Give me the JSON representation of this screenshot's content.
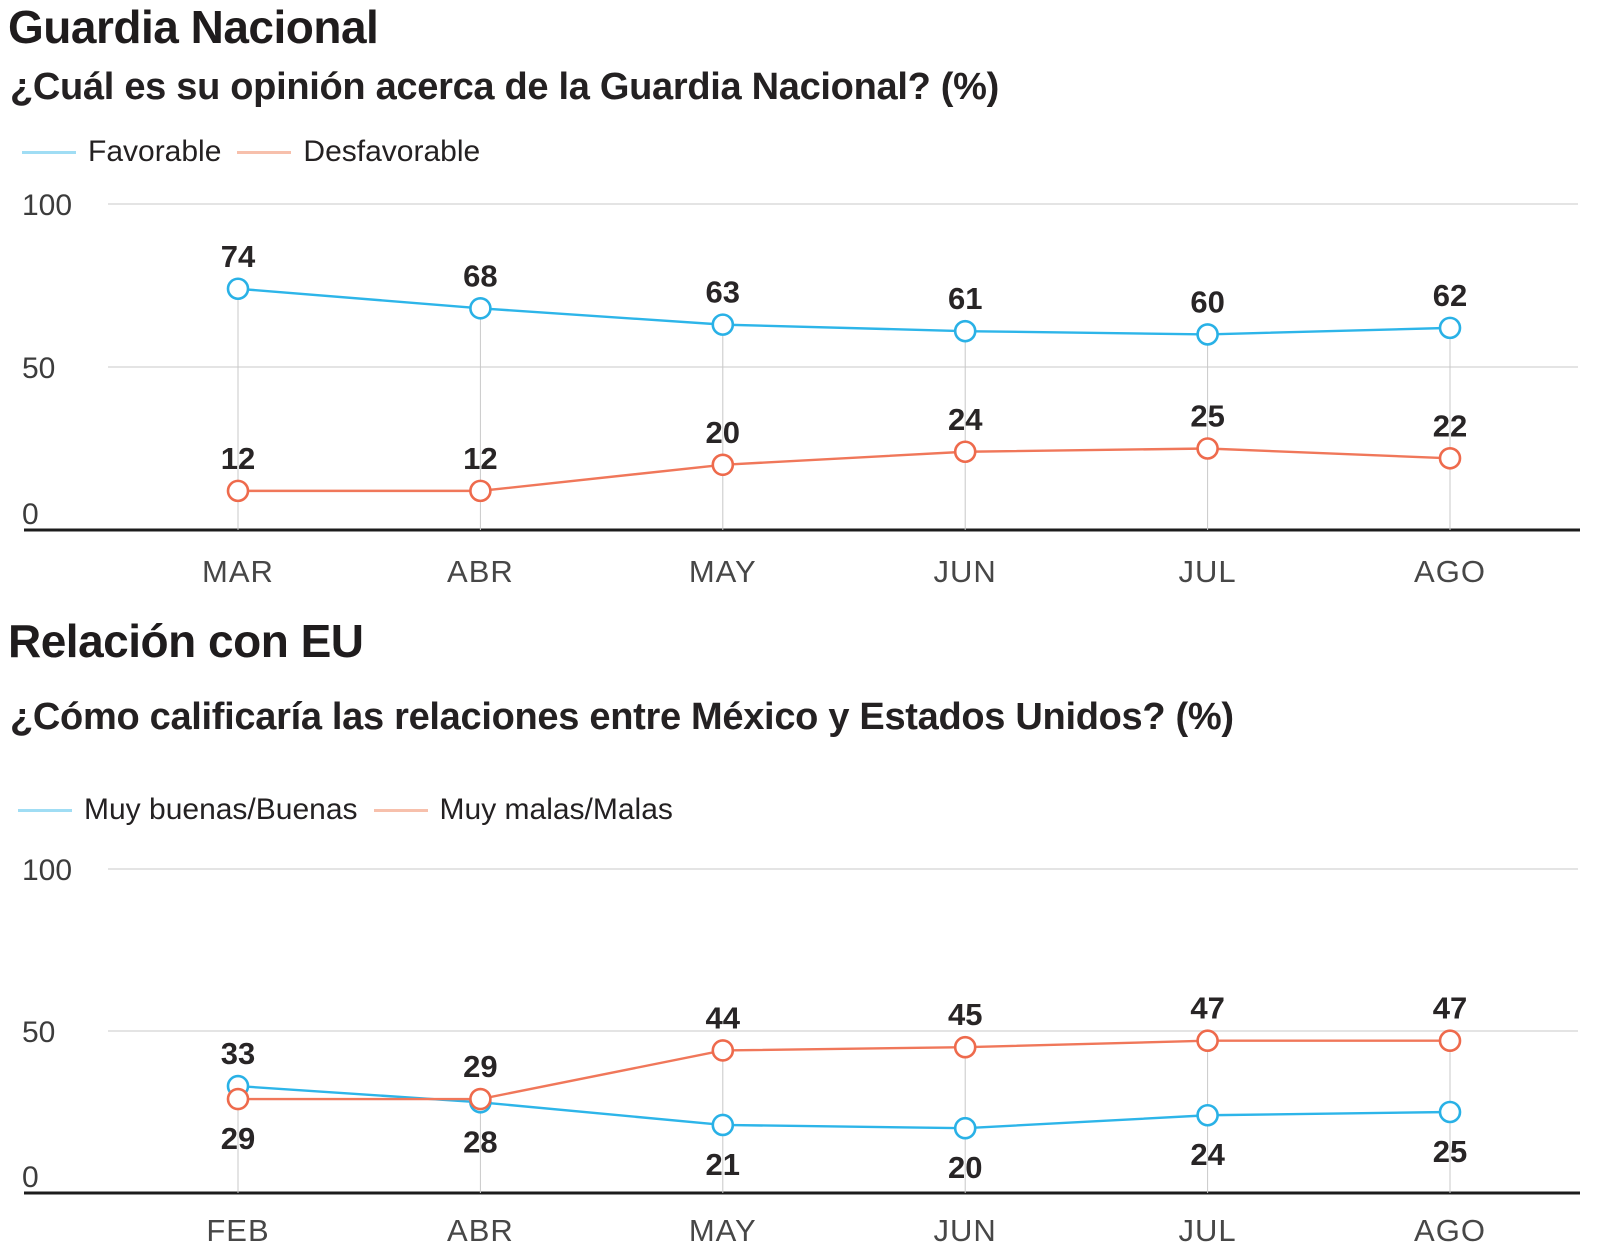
{
  "chart_data": [
    {
      "type": "line",
      "title": "Guardia Nacional",
      "subtitle": "¿Cuál es su opinión acerca de la Guardia Nacional? (%)",
      "categories": [
        "MAR",
        "ABR",
        "MAY",
        "JUN",
        "JUL",
        "AGO"
      ],
      "series": [
        {
          "name": "Favorable",
          "color": "#29b1e6",
          "line_color": "#2db5e9",
          "legend_color": "#a0ddf4",
          "values": [
            74,
            68,
            63,
            61,
            60,
            62
          ],
          "label_position": [
            "above",
            "above",
            "above",
            "above",
            "above",
            "above"
          ]
        },
        {
          "name": "Desfavorable",
          "color": "#ee6a4c",
          "line_color": "#f0775a",
          "legend_color": "#f7c0ac",
          "values": [
            12,
            12,
            20,
            24,
            25,
            22
          ],
          "label_position": [
            "above",
            "above",
            "above",
            "above",
            "above",
            "above"
          ]
        }
      ],
      "ylim": [
        0,
        100
      ],
      "yticks": [
        0,
        50,
        100
      ],
      "grid": "horizontal gridlines at 50 and 100, vertical droplines from top point to axis",
      "legend_position": "top-left",
      "xlabel": "",
      "ylabel": ""
    },
    {
      "type": "line",
      "title": "Relación con EU",
      "subtitle": "¿Cómo calificaría las relaciones entre México y Estados Unidos? (%)",
      "categories": [
        "FEB",
        "ABR",
        "MAY",
        "JUN",
        "JUL",
        "AGO"
      ],
      "series": [
        {
          "name": "Muy buenas/Buenas",
          "color": "#29b1e6",
          "line_color": "#2db5e9",
          "legend_color": "#a0ddf4",
          "values": [
            33,
            28,
            21,
            20,
            24,
            25
          ],
          "label_position": [
            "above",
            "below",
            "below",
            "below",
            "below",
            "below"
          ]
        },
        {
          "name": "Muy malas/Malas",
          "color": "#ee6a4c",
          "line_color": "#f0775a",
          "legend_color": "#f7c0ac",
          "values": [
            29,
            29,
            44,
            45,
            47,
            47
          ],
          "label_position": [
            "below",
            "above",
            "above",
            "above",
            "above",
            "above"
          ]
        }
      ],
      "ylim": [
        0,
        100
      ],
      "yticks": [
        0,
        50,
        100
      ],
      "grid": "horizontal gridlines at 50 and 100, vertical droplines from top point to axis",
      "legend_position": "top-left",
      "xlabel": "",
      "ylabel": ""
    }
  ],
  "style": {
    "gridline_color": "#dcdcdc",
    "dropline_color": "#c8c8c8",
    "axis_color": "#1c1c1c",
    "marker_fill": "#ffffff"
  }
}
